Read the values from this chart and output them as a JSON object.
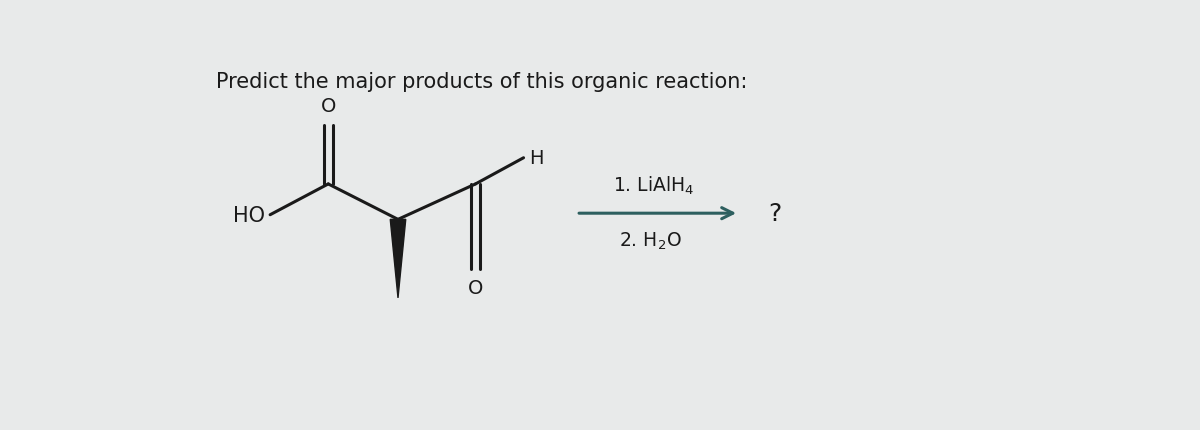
{
  "title": "Predict the major products of this organic reaction:",
  "bg_color": "#e8eaea",
  "line_color": "#1a1a1a",
  "arrow_color": "#2d5f5f",
  "line_width": 2.2,
  "text_fontsize": 15,
  "label_fontsize": 14,
  "small_fontsize": 11,
  "question_mark": "?",
  "HO_label": "HO",
  "H_label": "H",
  "O_top_label": "O",
  "O_bottom_label": "O"
}
